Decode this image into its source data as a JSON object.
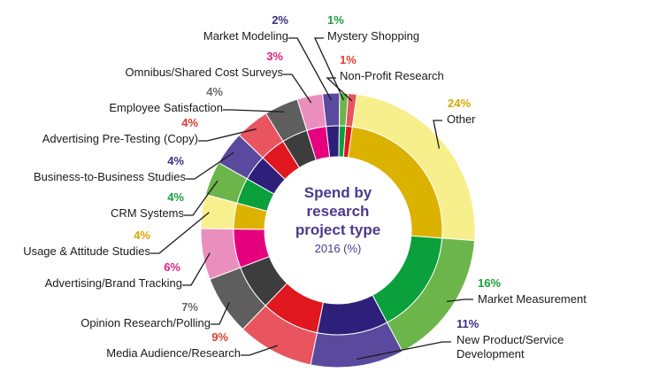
{
  "chart_data": {
    "type": "pie",
    "title_lines": [
      "Spend by",
      "research",
      "project type"
    ],
    "subtitle": "2016 (%)",
    "slices": [
      {
        "label": "Other",
        "label_lines": [
          "Other"
        ],
        "value": 24,
        "pct_text": "24%",
        "outer": "#f6ef8c",
        "inner": "#dcb200",
        "pct_color": "#d4a800"
      },
      {
        "label": "Market Measurement",
        "label_lines": [
          "Market Measurement"
        ],
        "value": 16,
        "pct_text": "16%",
        "outer": "#6cb54b",
        "inner": "#0aa03c",
        "pct_color": "#1a9e3a"
      },
      {
        "label": "New Product/Service Development",
        "label_lines": [
          "New Product/Service",
          "Development"
        ],
        "value": 11,
        "pct_text": "11%",
        "outer": "#5a4a9e",
        "inner": "#2e1f7a",
        "pct_color": "#3b2f86"
      },
      {
        "label": "Media Audience/Research",
        "label_lines": [
          "Media Audience/Research"
        ],
        "value": 9,
        "pct_text": "9%",
        "outer": "#e8555f",
        "inner": "#e0171e",
        "pct_color": "#e03a2e"
      },
      {
        "label": "Opinion Research/Polling",
        "label_lines": [
          "Opinion Research/Polling"
        ],
        "value": 7,
        "pct_text": "7%",
        "outer": "#5e5e5e",
        "inner": "#3d3d3d",
        "pct_color": "#6b6b6b"
      },
      {
        "label": "Advertising/Brand Tracking",
        "label_lines": [
          "Advertising/Brand Tracking"
        ],
        "value": 6,
        "pct_text": "6%",
        "outer": "#ea8fbd",
        "inner": "#e5007e",
        "pct_color": "#e0207e"
      },
      {
        "label": "Usage & Attitude Studies",
        "label_lines": [
          "Usage & Attitude Studies"
        ],
        "value": 4,
        "pct_text": "4%",
        "outer": "#f8ef8f",
        "inner": "#dcb200",
        "pct_color": "#d4a800"
      },
      {
        "label": "CRM Systems",
        "label_lines": [
          "CRM Systems"
        ],
        "value": 4,
        "pct_text": "4%",
        "outer": "#6cb54b",
        "inner": "#0aa03c",
        "pct_color": "#1a9e3a"
      },
      {
        "label": "Business-to-Business Studies",
        "label_lines": [
          "Business-to-Business Studies"
        ],
        "value": 4,
        "pct_text": "4%",
        "outer": "#5a4a9e",
        "inner": "#2e1f7a",
        "pct_color": "#3b2f86"
      },
      {
        "label": "Advertising Pre-Testing (Copy)",
        "label_lines": [
          "Advertising Pre-Testing (Copy)"
        ],
        "value": 4,
        "pct_text": "4%",
        "outer": "#e8555f",
        "inner": "#e0171e",
        "pct_color": "#e03a2e"
      },
      {
        "label": "Employee Satisfaction",
        "label_lines": [
          "Employee Satisfaction"
        ],
        "value": 4,
        "pct_text": "4%",
        "outer": "#5e5e5e",
        "inner": "#3d3d3d",
        "pct_color": "#6b6b6b"
      },
      {
        "label": "Omnibus/Shared Cost Surveys",
        "label_lines": [
          "Omnibus/Shared Cost Surveys"
        ],
        "value": 3,
        "pct_text": "3%",
        "outer": "#ea8fbd",
        "inner": "#e5007e",
        "pct_color": "#e0207e"
      },
      {
        "label": "Market Modeling",
        "label_lines": [
          "Market Modeling"
        ],
        "value": 2,
        "pct_text": "2%",
        "outer": "#5a4a9e",
        "inner": "#2e1f7a",
        "pct_color": "#3b2f86"
      },
      {
        "label": "Mystery Shopping",
        "label_lines": [
          "Mystery Shopping"
        ],
        "value": 1,
        "pct_text": "1%",
        "outer": "#6cb54b",
        "inner": "#0aa03c",
        "pct_color": "#1a9e3a"
      },
      {
        "label": "Non-Profit Research",
        "label_lines": [
          "Non-Profit Research"
        ],
        "value": 1,
        "pct_text": "1%",
        "outer": "#e8555f",
        "inner": "#e0171e",
        "pct_color": "#e03a2e"
      }
    ]
  }
}
